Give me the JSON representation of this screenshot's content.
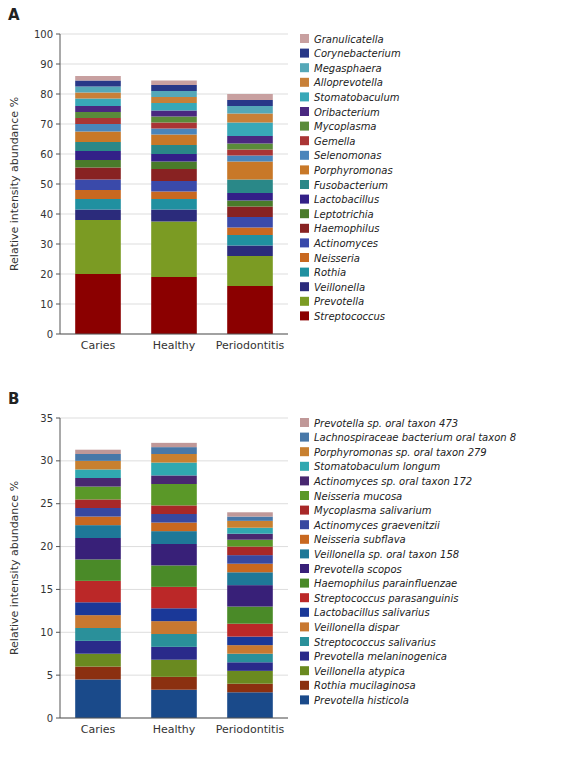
{
  "chart_data": [
    {
      "type": "bar",
      "title": "A",
      "stacked": true,
      "grid": true,
      "legend": "right",
      "ylabel": "Relative intensity abundance %",
      "categories": [
        "Caries",
        "Healthy",
        "Periodontitis"
      ],
      "ylim": [
        0,
        100
      ],
      "yticks": [
        0,
        10,
        20,
        30,
        40,
        50,
        60,
        70,
        80,
        90,
        100
      ],
      "series": [
        {
          "name": "Streptococcus",
          "color": "#8B0000",
          "values": [
            20.0,
            19.0,
            16.0
          ]
        },
        {
          "name": "Prevotella",
          "color": "#7B9B23",
          "values": [
            18.0,
            18.5,
            10.0
          ]
        },
        {
          "name": "Veillonella",
          "color": "#2B2B7B",
          "values": [
            3.5,
            4.0,
            3.5
          ]
        },
        {
          "name": "Rothia",
          "color": "#2090A0",
          "values": [
            3.5,
            3.5,
            3.5
          ]
        },
        {
          "name": "Neisseria",
          "color": "#C86820",
          "values": [
            3.0,
            2.5,
            2.5
          ]
        },
        {
          "name": "Actinomyces",
          "color": "#3A4AAA",
          "values": [
            3.5,
            3.5,
            3.5
          ]
        },
        {
          "name": "Haemophilus",
          "color": "#882222",
          "values": [
            4.0,
            4.0,
            3.5
          ]
        },
        {
          "name": "Leptotrichia",
          "color": "#4A7B2A",
          "values": [
            2.5,
            2.5,
            2.0
          ]
        },
        {
          "name": "Lactobacillus",
          "color": "#332088",
          "values": [
            3.0,
            2.5,
            2.5
          ]
        },
        {
          "name": "Fusobacterium",
          "color": "#2A8888",
          "values": [
            3.0,
            3.0,
            4.5
          ]
        },
        {
          "name": "Porphyromonas",
          "color": "#C87828",
          "values": [
            3.5,
            3.5,
            6.0
          ]
        },
        {
          "name": "Selenomonas",
          "color": "#4A85BB",
          "values": [
            2.5,
            2.0,
            2.0
          ]
        },
        {
          "name": "Gemella",
          "color": "#AA3535",
          "values": [
            2.0,
            2.0,
            2.0
          ]
        },
        {
          "name": "Mycoplasma",
          "color": "#5A8B3A",
          "values": [
            2.0,
            2.0,
            2.0
          ]
        },
        {
          "name": "Oribacterium",
          "color": "#4A2880",
          "values": [
            2.0,
            2.0,
            2.5
          ]
        },
        {
          "name": "Stomatobaculum",
          "color": "#38A8B8",
          "values": [
            2.5,
            2.5,
            4.5
          ]
        },
        {
          "name": "Alloprevotella",
          "color": "#C88038",
          "values": [
            2.0,
            2.0,
            3.0
          ]
        },
        {
          "name": "Megasphaera",
          "color": "#55A8B8",
          "values": [
            2.0,
            2.0,
            2.5
          ]
        },
        {
          "name": "Corynebacterium",
          "color": "#283888",
          "values": [
            2.0,
            2.0,
            2.0
          ]
        },
        {
          "name": "Granulicatella",
          "color": "#C8A0A0",
          "values": [
            1.5,
            1.5,
            2.0
          ]
        }
      ]
    },
    {
      "type": "bar",
      "title": "B",
      "stacked": true,
      "grid": true,
      "legend": "right",
      "ylabel": "Relative intensity abundance %",
      "categories": [
        "Caries",
        "Healthy",
        "Periodontitis"
      ],
      "ylim": [
        0,
        35
      ],
      "yticks": [
        0,
        5,
        10,
        15,
        20,
        25,
        30,
        35
      ],
      "series": [
        {
          "name": "Prevotella histicola",
          "color": "#1A4A8A",
          "values": [
            4.5,
            3.3,
            3.0
          ]
        },
        {
          "name": "Rothia mucilaginosa",
          "color": "#8B3010",
          "values": [
            1.5,
            1.5,
            1.0
          ]
        },
        {
          "name": "Veillonella atypica",
          "color": "#6A8A20",
          "values": [
            1.5,
            2.0,
            1.5
          ]
        },
        {
          "name": "Prevotella melaninogenica",
          "color": "#2A2A8A",
          "values": [
            1.5,
            1.5,
            1.0
          ]
        },
        {
          "name": "Streptococcus salivarius",
          "color": "#2A909A",
          "values": [
            1.5,
            1.5,
            1.0
          ]
        },
        {
          "name": "Veillonella dispar",
          "color": "#C87830",
          "values": [
            1.5,
            1.5,
            1.0
          ]
        },
        {
          "name": "Lactobacillus salivarius",
          "color": "#1A3898",
          "values": [
            1.5,
            1.5,
            1.0
          ]
        },
        {
          "name": "Streptococcus parasanguinis",
          "color": "#BB2828",
          "values": [
            2.5,
            2.5,
            1.5
          ]
        },
        {
          "name": "Haemophilus parainfluenzae",
          "color": "#4A8A28",
          "values": [
            2.5,
            2.5,
            2.0
          ]
        },
        {
          "name": "Prevotella scopos",
          "color": "#382078",
          "values": [
            2.5,
            2.5,
            2.5
          ]
        },
        {
          "name": "Veillonella sp. oral taxon 158",
          "color": "#1E7898",
          "values": [
            1.5,
            1.5,
            1.5
          ]
        },
        {
          "name": "Neisseria subflava",
          "color": "#C86820",
          "values": [
            1.0,
            1.0,
            1.0
          ]
        },
        {
          "name": "Actinomyces graevenitzii",
          "color": "#3848A0",
          "values": [
            1.0,
            1.0,
            1.0
          ]
        },
        {
          "name": "Mycoplasma salivarium",
          "color": "#A82828",
          "values": [
            1.0,
            1.0,
            1.0
          ]
        },
        {
          "name": "Neisseria mucosa",
          "color": "#5A9828",
          "values": [
            1.5,
            2.5,
            0.8
          ]
        },
        {
          "name": "Actinomyces sp. oral taxon 172",
          "color": "#482870",
          "values": [
            1.0,
            1.0,
            0.7
          ]
        },
        {
          "name": "Stomatobaculum longum",
          "color": "#30A8B0",
          "values": [
            1.0,
            1.5,
            0.7
          ]
        },
        {
          "name": "Porphyromonas sp. oral taxon 279",
          "color": "#C88030",
          "values": [
            1.0,
            1.0,
            0.8
          ]
        },
        {
          "name": "Lachnospiraceae bacterium oral taxon 8",
          "color": "#4878A8",
          "values": [
            0.8,
            0.8,
            0.5
          ]
        },
        {
          "name": "Prevotella sp. oral taxon 473",
          "color": "#C09898",
          "values": [
            0.5,
            0.5,
            0.5
          ]
        }
      ]
    }
  ]
}
